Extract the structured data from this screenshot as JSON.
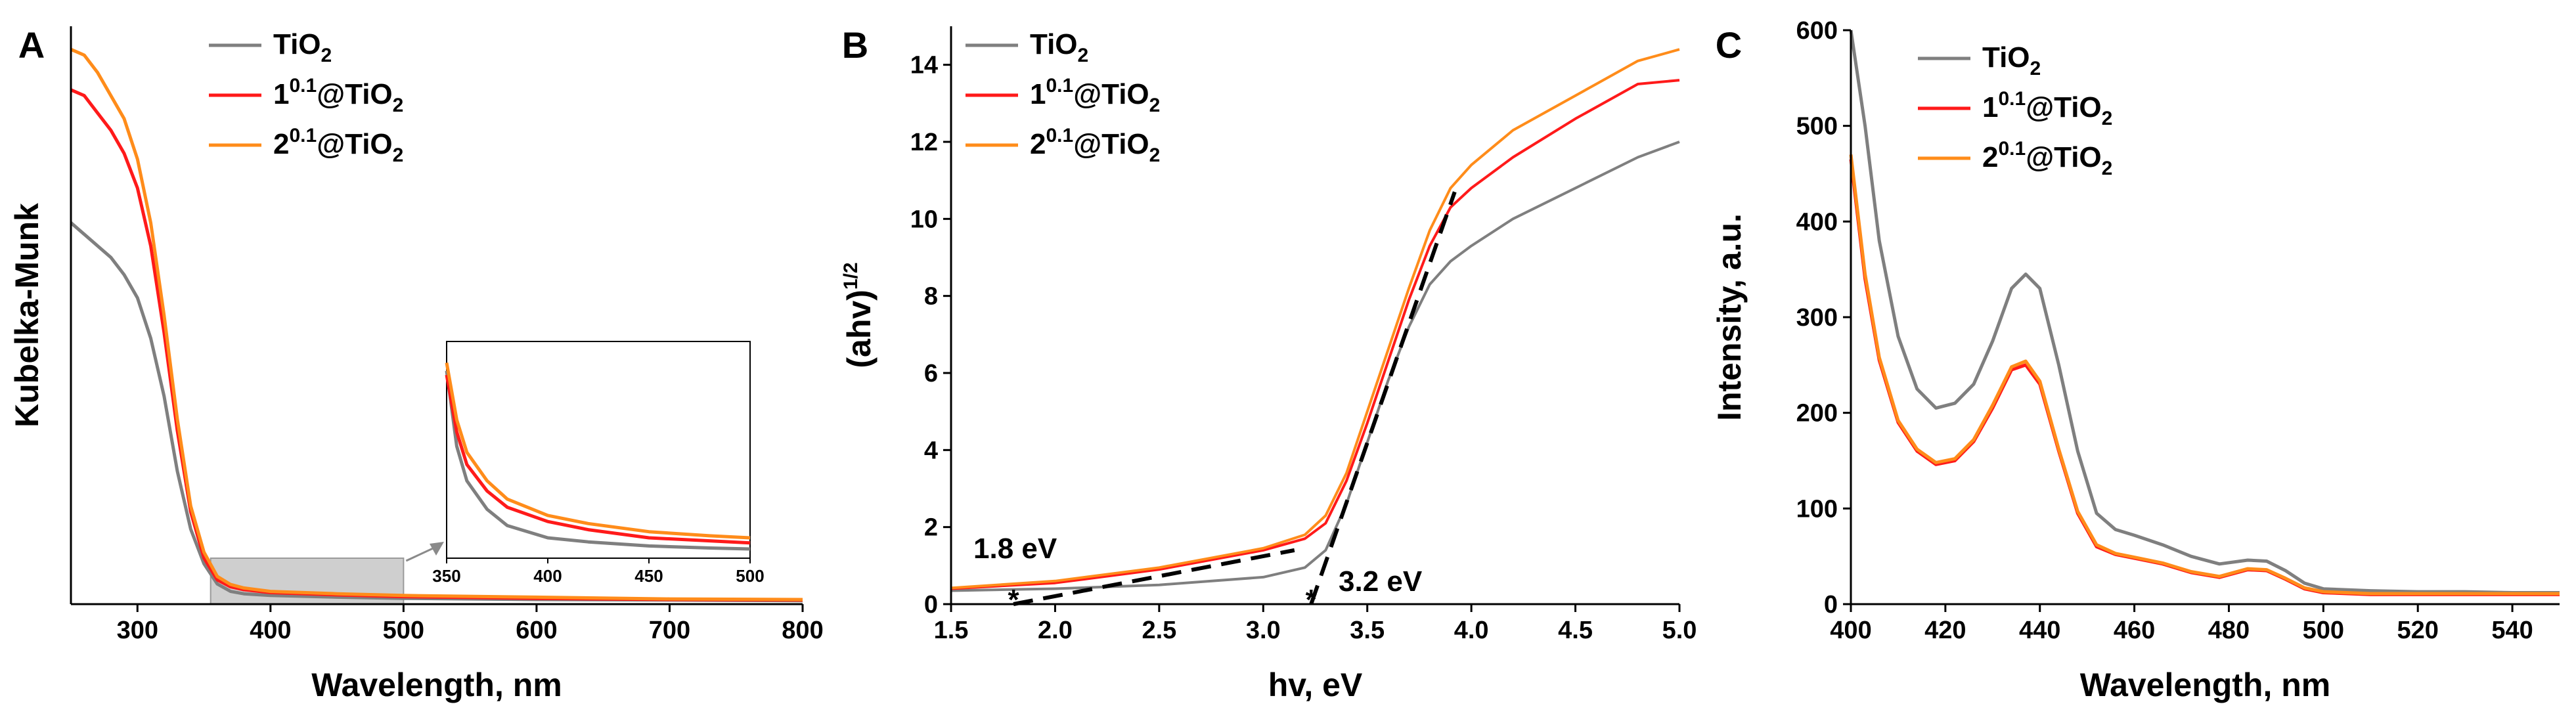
{
  "figure": {
    "description_free": true
  },
  "colors": {
    "tio2": "#7f7f7f",
    "s1": "#ff1a1a",
    "s2": "#ff8c1a",
    "axis": "#000000",
    "inset_region": "#cfcfcf",
    "fit": "#000000"
  },
  "legend_entries": [
    {
      "key": "tio2",
      "pre": "TiO",
      "sup": "",
      "mid": "",
      "sub": "2"
    },
    {
      "key": "s1",
      "pre": "1",
      "sup": "0.1",
      "mid": "@TiO",
      "sub": "2"
    },
    {
      "key": "s2",
      "pre": "2",
      "sup": "0.1",
      "mid": "@TiO",
      "sub": "2"
    }
  ],
  "chart_data": [
    {
      "panel": "A",
      "type": "line",
      "xlabel": "Wavelength, nm",
      "ylabel": "Kubelka-Munk",
      "xlim": [
        250,
        800
      ],
      "ylim": [
        0,
        1
      ],
      "xticks": [
        300,
        400,
        500,
        600,
        700,
        800
      ],
      "yticks": [],
      "series": [
        {
          "name": "TiO2",
          "key": "tio2",
          "x": [
            250,
            260,
            270,
            280,
            290,
            300,
            310,
            320,
            330,
            340,
            350,
            360,
            370,
            380,
            400,
            450,
            500,
            600,
            700,
            800
          ],
          "y": [
            0.66,
            0.64,
            0.62,
            0.6,
            0.57,
            0.53,
            0.46,
            0.36,
            0.23,
            0.13,
            0.07,
            0.035,
            0.022,
            0.018,
            0.015,
            0.012,
            0.01,
            0.008,
            0.007,
            0.006
          ]
        },
        {
          "name": "1^0.1@TiO2",
          "key": "s1",
          "x": [
            250,
            260,
            270,
            280,
            290,
            300,
            310,
            320,
            330,
            340,
            350,
            360,
            370,
            380,
            400,
            450,
            500,
            600,
            700,
            800
          ],
          "y": [
            0.89,
            0.88,
            0.85,
            0.82,
            0.78,
            0.72,
            0.62,
            0.47,
            0.3,
            0.16,
            0.08,
            0.042,
            0.03,
            0.025,
            0.02,
            0.016,
            0.013,
            0.01,
            0.008,
            0.007
          ]
        },
        {
          "name": "2^0.1@TiO2",
          "key": "s2",
          "x": [
            250,
            260,
            270,
            280,
            290,
            300,
            310,
            320,
            330,
            340,
            350,
            360,
            370,
            380,
            400,
            450,
            500,
            600,
            700,
            800
          ],
          "y": [
            0.96,
            0.95,
            0.92,
            0.88,
            0.84,
            0.77,
            0.66,
            0.5,
            0.32,
            0.17,
            0.09,
            0.048,
            0.034,
            0.028,
            0.022,
            0.018,
            0.015,
            0.012,
            0.009,
            0.008
          ]
        }
      ],
      "inset": {
        "highlight_range": [
          355,
          500
        ],
        "xlim": [
          350,
          500
        ],
        "ylim": [
          0,
          1
        ],
        "xticks": [
          350,
          400,
          450,
          500
        ],
        "series": [
          {
            "key": "tio2",
            "x": [
              350,
              355,
              360,
              370,
              380,
              400,
              420,
              450,
              480,
              500
            ],
            "y": [
              0.92,
              0.55,
              0.38,
              0.24,
              0.16,
              0.1,
              0.08,
              0.06,
              0.05,
              0.045
            ]
          },
          {
            "key": "s1",
            "x": [
              350,
              355,
              360,
              370,
              380,
              400,
              420,
              450,
              480,
              500
            ],
            "y": [
              0.9,
              0.62,
              0.46,
              0.33,
              0.25,
              0.18,
              0.14,
              0.1,
              0.085,
              0.075
            ]
          },
          {
            "key": "s2",
            "x": [
              350,
              355,
              360,
              370,
              380,
              400,
              420,
              450,
              480,
              500
            ],
            "y": [
              0.96,
              0.68,
              0.52,
              0.38,
              0.29,
              0.21,
              0.17,
              0.13,
              0.11,
              0.1
            ]
          }
        ]
      }
    },
    {
      "panel": "B",
      "type": "line",
      "xlabel": "hv, eV",
      "ylabel_main": "(ahv)",
      "ylabel_sup": "1/2",
      "xlim": [
        1.5,
        5.0
      ],
      "ylim": [
        0,
        15
      ],
      "xticks": [
        1.5,
        2.0,
        2.5,
        3.0,
        3.5,
        4.0,
        4.5,
        5.0
      ],
      "xtick_labels": [
        "1.5",
        "2.0",
        "2.5",
        "3.0",
        "3.5",
        "4.0",
        "4.5",
        "5.0"
      ],
      "yticks": [
        0,
        2,
        4,
        6,
        8,
        10,
        12,
        14
      ],
      "series": [
        {
          "name": "TiO2",
          "key": "tio2",
          "x": [
            1.5,
            2.0,
            2.5,
            3.0,
            3.2,
            3.3,
            3.4,
            3.5,
            3.6,
            3.7,
            3.8,
            3.9,
            4.0,
            4.2,
            4.5,
            4.8,
            5.0
          ],
          "y": [
            0.35,
            0.4,
            0.5,
            0.7,
            0.95,
            1.4,
            2.6,
            4.2,
            5.8,
            7.2,
            8.3,
            8.9,
            9.3,
            10.0,
            10.8,
            11.6,
            12.0
          ]
        },
        {
          "name": "1^0.1@TiO2",
          "key": "s1",
          "x": [
            1.5,
            2.0,
            2.5,
            3.0,
            3.2,
            3.3,
            3.4,
            3.5,
            3.6,
            3.7,
            3.8,
            3.9,
            4.0,
            4.2,
            4.5,
            4.8,
            5.0
          ],
          "y": [
            0.4,
            0.55,
            0.9,
            1.4,
            1.7,
            2.1,
            3.2,
            4.7,
            6.3,
            7.9,
            9.3,
            10.3,
            10.8,
            11.6,
            12.6,
            13.5,
            13.6
          ]
        },
        {
          "name": "2^0.1@TiO2",
          "key": "s2",
          "x": [
            1.5,
            2.0,
            2.5,
            3.0,
            3.2,
            3.3,
            3.4,
            3.5,
            3.6,
            3.7,
            3.8,
            3.9,
            4.0,
            4.2,
            4.5,
            4.8,
            5.0
          ],
          "y": [
            0.42,
            0.6,
            0.95,
            1.45,
            1.8,
            2.3,
            3.4,
            5.0,
            6.6,
            8.2,
            9.7,
            10.8,
            11.4,
            12.3,
            13.2,
            14.1,
            14.4
          ]
        }
      ],
      "fit_lines": [
        {
          "x": [
            1.8,
            3.15
          ],
          "y": [
            0.0,
            1.4
          ]
        },
        {
          "x": [
            3.23,
            3.92
          ],
          "y": [
            0.0,
            10.7
          ]
        }
      ],
      "annotations": [
        {
          "text": "1.8 eV",
          "x": 1.8,
          "y": 0
        },
        {
          "text": "3.2 eV",
          "x": 3.23,
          "y": 0
        }
      ]
    },
    {
      "panel": "C",
      "type": "line",
      "xlabel": "Wavelength, nm",
      "ylabel": "Intensity, a.u.",
      "xlim": [
        400,
        550
      ],
      "ylim": [
        0,
        600
      ],
      "xticks": [
        400,
        420,
        440,
        460,
        480,
        500,
        520,
        540
      ],
      "yticks": [
        0,
        100,
        200,
        300,
        400,
        500,
        600
      ],
      "series": [
        {
          "name": "TiO2",
          "key": "tio2",
          "x": [
            400,
            403,
            406,
            410,
            414,
            418,
            422,
            426,
            430,
            434,
            437,
            440,
            444,
            448,
            452,
            456,
            460,
            466,
            472,
            478,
            484,
            488,
            492,
            496,
            500,
            510,
            520,
            530,
            540,
            550
          ],
          "y": [
            600,
            500,
            380,
            280,
            225,
            205,
            210,
            230,
            275,
            330,
            345,
            330,
            250,
            160,
            95,
            78,
            72,
            62,
            50,
            42,
            46,
            45,
            35,
            22,
            16,
            14,
            13,
            13,
            12,
            12
          ]
        },
        {
          "name": "1^0.1@TiO2",
          "key": "s1",
          "x": [
            400,
            403,
            406,
            410,
            414,
            418,
            422,
            426,
            430,
            434,
            437,
            440,
            444,
            448,
            452,
            456,
            460,
            466,
            472,
            478,
            484,
            488,
            492,
            496,
            500,
            510,
            520,
            530,
            540,
            550
          ],
          "y": [
            465,
            340,
            255,
            190,
            160,
            146,
            150,
            170,
            205,
            245,
            250,
            230,
            160,
            95,
            60,
            52,
            48,
            42,
            33,
            28,
            36,
            35,
            26,
            16,
            12,
            10,
            10,
            10,
            10,
            10
          ]
        },
        {
          "name": "2^0.1@TiO2",
          "key": "s2",
          "x": [
            400,
            403,
            406,
            410,
            414,
            418,
            422,
            426,
            430,
            434,
            437,
            440,
            444,
            448,
            452,
            456,
            460,
            466,
            472,
            478,
            484,
            488,
            492,
            496,
            500,
            510,
            520,
            530,
            540,
            550
          ],
          "y": [
            470,
            345,
            258,
            192,
            162,
            148,
            152,
            172,
            208,
            248,
            254,
            233,
            162,
            97,
            62,
            53,
            49,
            43,
            34,
            29,
            37,
            36,
            27,
            17,
            13,
            11,
            11,
            11,
            11,
            11
          ]
        }
      ]
    }
  ]
}
